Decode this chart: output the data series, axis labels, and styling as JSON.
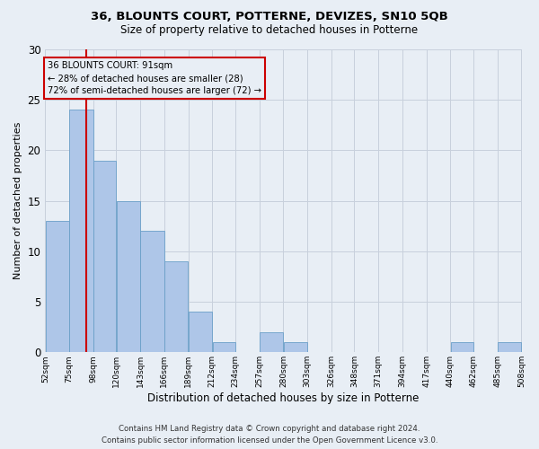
{
  "title": "36, BLOUNTS COURT, POTTERNE, DEVIZES, SN10 5QB",
  "subtitle": "Size of property relative to detached houses in Potterne",
  "xlabel": "Distribution of detached houses by size in Potterne",
  "ylabel": "Number of detached properties",
  "footer_line1": "Contains HM Land Registry data © Crown copyright and database right 2024.",
  "footer_line2": "Contains public sector information licensed under the Open Government Licence v3.0.",
  "annotation_title": "36 BLOUNTS COURT: 91sqm",
  "annotation_line2": "← 28% of detached houses are smaller (28)",
  "annotation_line3": "72% of semi-detached houses are larger (72) →",
  "subject_sqm": 91,
  "bins": [
    52,
    75,
    98,
    120,
    143,
    166,
    189,
    212,
    234,
    257,
    280,
    303,
    326,
    348,
    371,
    394,
    417,
    440,
    462,
    485,
    508
  ],
  "counts": [
    13,
    24,
    19,
    15,
    12,
    9,
    4,
    1,
    0,
    2,
    1,
    0,
    0,
    0,
    0,
    0,
    0,
    1,
    0,
    1
  ],
  "bar_color": "#aec6e8",
  "bar_edge_color": "#6a9fc8",
  "subject_line_color": "#cc0000",
  "annotation_box_color": "#cc0000",
  "grid_color": "#c8d0dc",
  "background_color": "#e8eef5",
  "ylim": [
    0,
    30
  ],
  "yticks": [
    0,
    5,
    10,
    15,
    20,
    25,
    30
  ]
}
